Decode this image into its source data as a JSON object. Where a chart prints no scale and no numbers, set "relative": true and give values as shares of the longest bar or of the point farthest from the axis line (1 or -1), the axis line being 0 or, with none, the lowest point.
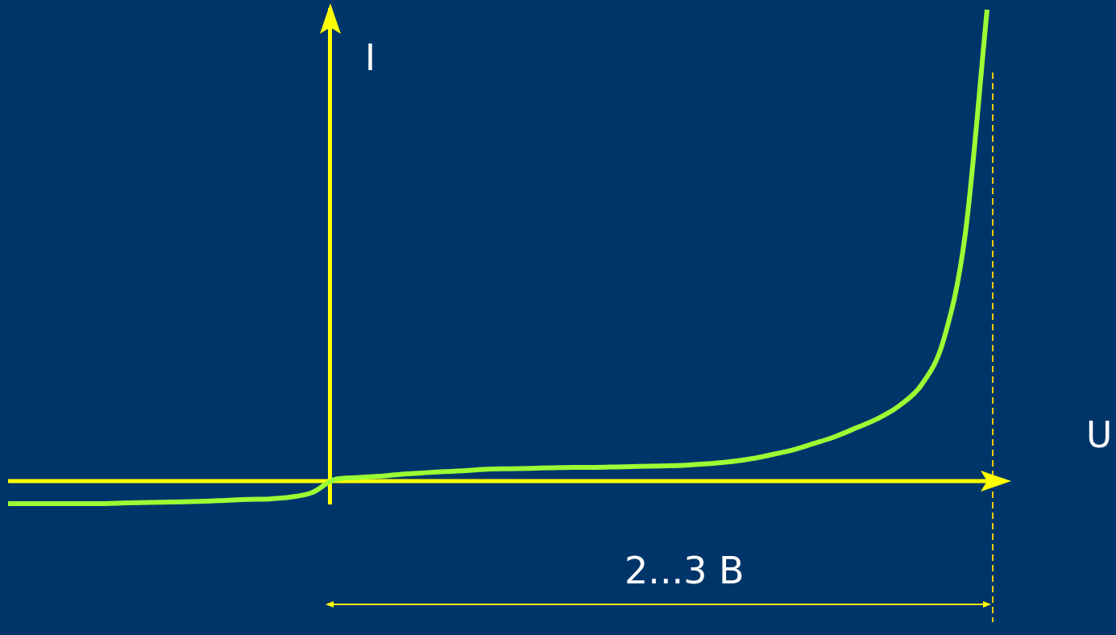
{
  "chart_data": {
    "type": "line",
    "relative": true,
    "xlabel": "U",
    "ylabel": "I",
    "annotations": [
      "2...3 B"
    ],
    "legend": false,
    "marker": "none",
    "ref_lines": [
      {
        "axis": "y",
        "value": 0,
        "color": "#ffff00"
      }
    ],
    "line_style": "solid",
    "categories": [
      null,
      null,
      null,
      null,
      null,
      null,
      null,
      null,
      null,
      null,
      null,
      null,
      null,
      null,
      null,
      null,
      null,
      null,
      null,
      null,
      null,
      null,
      null,
      null,
      null,
      null,
      null,
      null,
      null,
      null,
      null,
      null,
      null,
      null,
      null,
      null,
      null,
      null,
      null,
      null,
      null,
      null,
      null,
      null,
      null,
      null
    ],
    "series": [
      {
        "color": "#99ff33",
        "values": [
          -0.048,
          -0.048,
          -0.048,
          -0.048,
          -0.048,
          -0.047,
          -0.046,
          -0.045,
          -0.044,
          -0.043,
          -0.041,
          -0.039,
          -0.038,
          -0.034,
          -0.024,
          0.003,
          0.007,
          0.01,
          0.014,
          0.017,
          0.02,
          0.022,
          0.025,
          0.026,
          0.027,
          0.028,
          0.029,
          0.029,
          0.03,
          0.031,
          0.032,
          0.033,
          0.036,
          0.04,
          0.046,
          0.055,
          0.065,
          0.079,
          0.094,
          0.113,
          0.133,
          0.161,
          0.205,
          0.299,
          0.525,
          1
        ]
      }
    ]
  }
}
